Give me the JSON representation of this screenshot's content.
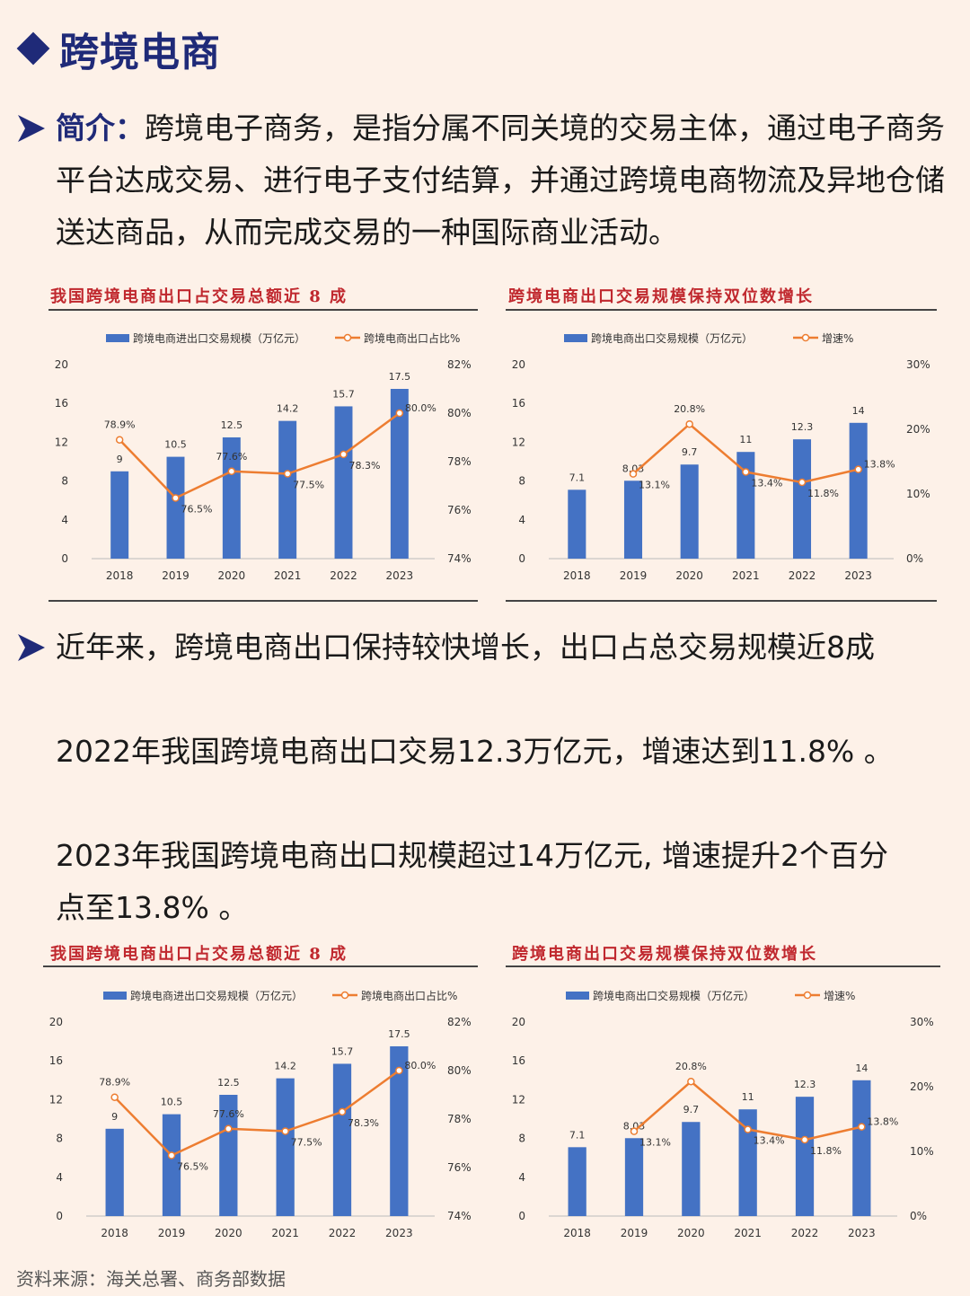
{
  "header": {
    "title": "跨境电商"
  },
  "intro": {
    "lead": "简介：",
    "text": "跨境电子商务，是指分属不同关境的交易主体，通过电子商务平台达成交易、进行电子支付结算，并通过跨境电商物流及异地仓储送达商品，从而完成交易的一种国际商业活动。"
  },
  "point": {
    "line1": "近年来，跨境电商出口保持较快增长，出口占总交易规模近8成",
    "line2": "2022年我国跨境电商出口交易12.3万亿元，增速达到11.8%  。",
    "line3a": "2023年我国跨境电商出口规模超过14万亿元, 增速提升2个百分",
    "line3b": "点至13.8%  。"
  },
  "source": "资料来源：海关总署、商务部数据",
  "colors": {
    "bar": "#4472c4",
    "line": "#ed7d31",
    "accent": "#1f2a78",
    "chart_title": "#c0282e"
  },
  "chart_data": [
    {
      "type": "bar+line",
      "title": "我国跨境电商出口占交易总额近 8 成",
      "categories": [
        "2018",
        "2019",
        "2020",
        "2021",
        "2022",
        "2023"
      ],
      "series": [
        {
          "name": "跨境电商进出口交易规模（万亿元）",
          "type": "bar",
          "axis": "left",
          "values": [
            9,
            10.5,
            12.5,
            14.2,
            15.7,
            17.5
          ],
          "labels": [
            "9",
            "10.5",
            "12.5",
            "14.2",
            "15.7",
            "17.5"
          ]
        },
        {
          "name": "跨境电商出口占比%",
          "type": "line",
          "axis": "right",
          "values": [
            78.9,
            76.5,
            77.6,
            77.5,
            78.3,
            80.0
          ],
          "labels": [
            "78.9%",
            "76.5%",
            "77.6%",
            "77.5%",
            "78.3%",
            "80.0%"
          ]
        }
      ],
      "left_ticks": [
        "0",
        "4",
        "8",
        "12",
        "16",
        "20"
      ],
      "left_range": [
        0,
        20
      ],
      "right_ticks": [
        "74%",
        "76%",
        "78%",
        "80%",
        "82%"
      ],
      "right_range": [
        74,
        82
      ],
      "legend_position": "top",
      "grid": false
    },
    {
      "type": "bar+line",
      "title": "跨境电商出口交易规模保持双位数增长",
      "categories": [
        "2018",
        "2019",
        "2020",
        "2021",
        "2022",
        "2023"
      ],
      "series": [
        {
          "name": "跨境电商出口交易规模（万亿元）",
          "type": "bar",
          "axis": "left",
          "values": [
            7.1,
            8.03,
            9.7,
            11,
            12.3,
            14
          ],
          "labels": [
            "7.1",
            "8.03",
            "9.7",
            "11",
            "12.3",
            "14"
          ]
        },
        {
          "name": "增速%",
          "type": "line",
          "axis": "right",
          "values": [
            null,
            13.1,
            20.8,
            13.4,
            11.8,
            13.8
          ],
          "labels": [
            "",
            "13.1%",
            "20.8%",
            "13.4%",
            "11.8%",
            "13.8%"
          ]
        }
      ],
      "left_ticks": [
        "0",
        "4",
        "8",
        "12",
        "16",
        "20"
      ],
      "left_range": [
        0,
        20
      ],
      "right_ticks": [
        "0%",
        "10%",
        "20%",
        "30%"
      ],
      "right_range": [
        0,
        30
      ],
      "legend_position": "top",
      "grid": false
    }
  ]
}
